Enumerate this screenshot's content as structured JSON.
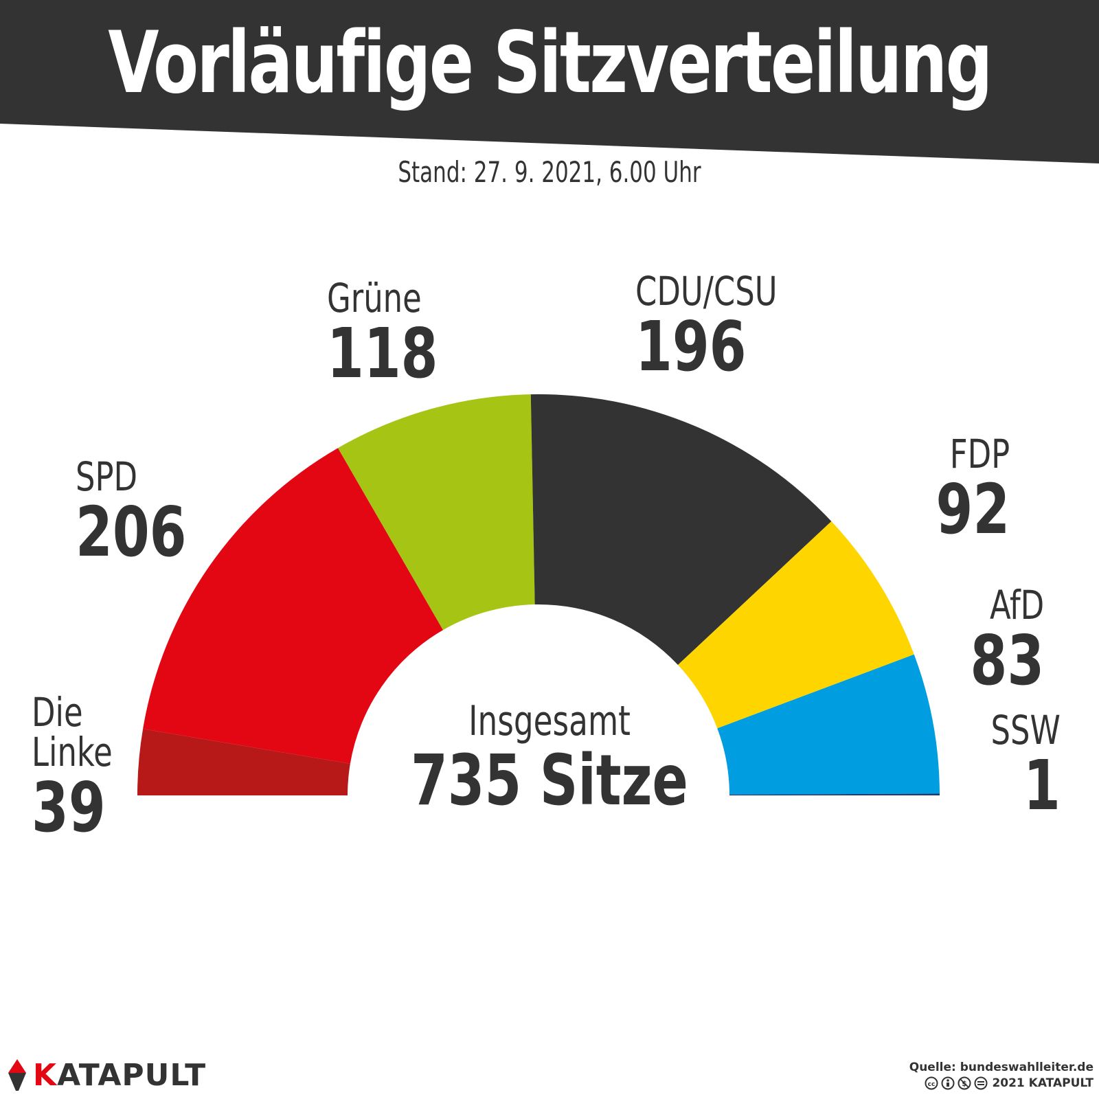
{
  "header": {
    "title": "Vorläufige Sitzverteilung",
    "subtitle": "Stand: 27. 9. 2021, 6.00 Uhr"
  },
  "chart_data": {
    "type": "pie",
    "variant": "semicircle",
    "title": "Vorläufige Sitzverteilung",
    "subtitle": "Stand: 27. 9. 2021, 6.00 Uhr",
    "unit": "Sitze",
    "total": 735,
    "total_label": "Insgesamt",
    "total_text": "735 Sitze",
    "slices": [
      {
        "name": "Die Linke",
        "value": 39,
        "color": "#b71918"
      },
      {
        "name": "SPD",
        "value": 206,
        "color": "#e30613"
      },
      {
        "name": "Grüne",
        "value": 118,
        "color": "#a6c413"
      },
      {
        "name": "CDU/CSU",
        "value": 196,
        "color": "#333333"
      },
      {
        "name": "FDP",
        "value": 92,
        "color": "#ffd500"
      },
      {
        "name": "AfD",
        "value": 83,
        "color": "#009ee0"
      },
      {
        "name": "SSW",
        "value": 1,
        "color": "#1e3a6e"
      }
    ]
  },
  "labels": {
    "linke_line1": "Die",
    "linke_line2": "Linke"
  },
  "footer": {
    "logo_first_letter": "K",
    "logo_rest": "ATAPULT",
    "logo_icon": "catapult-scoop-icon",
    "source": "Quelle: bundeswahlleiter.de",
    "license_icons": "creative-commons-by-nc-nd-icons",
    "copyright": "2021 KATAPULT"
  },
  "colors": {
    "banner": "#333333",
    "text": "#333333",
    "accent": "#e30613"
  }
}
